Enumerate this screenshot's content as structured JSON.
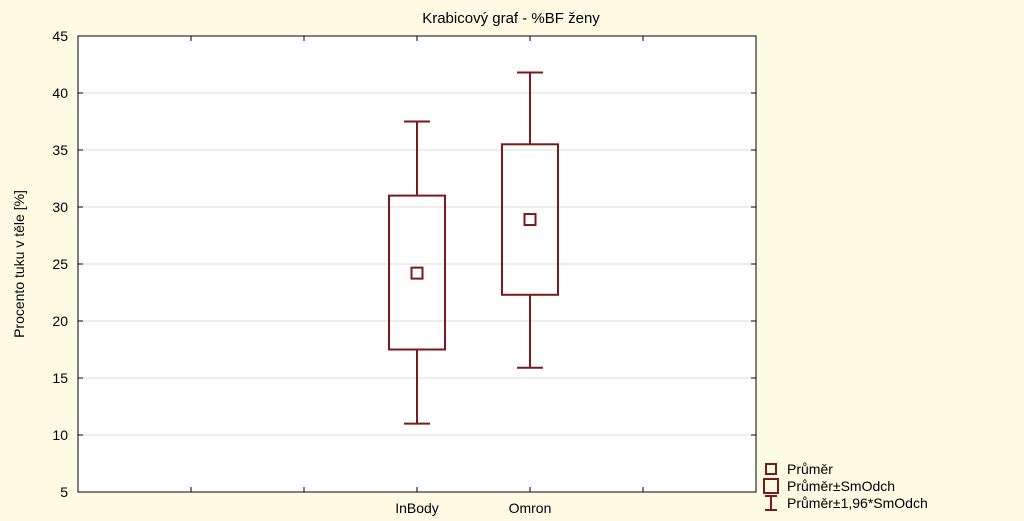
{
  "colors": {
    "background": "#fdfbe3",
    "plot_bg": "#ffffff",
    "box": "#7a1a1a",
    "grid": "#dddddd",
    "axis": "#000000"
  },
  "chart_data": {
    "type": "box",
    "title": "Krabicový graf - %BF ženy",
    "xlabel": "",
    "ylabel": "Procento tuku v těle [%]",
    "ylim": [
      5,
      45
    ],
    "yticks": [
      5,
      10,
      15,
      20,
      25,
      30,
      35,
      40,
      45
    ],
    "grid": true,
    "legend_position": "bottom-right, outside plot",
    "categories": [
      "InBody",
      "Omron"
    ],
    "boxes": [
      {
        "category": "InBody",
        "mean": 24.2,
        "sd_low": 17.5,
        "sd_high": 31.0,
        "ci_low": 11.0,
        "ci_high": 37.5
      },
      {
        "category": "Omron",
        "mean": 28.9,
        "sd_low": 22.3,
        "sd_high": 35.5,
        "ci_low": 15.9,
        "ci_high": 41.8
      }
    ],
    "legend": [
      {
        "marker": "small-square",
        "label": "Průměr"
      },
      {
        "marker": "large-square",
        "label": "Průměr±SmOdch"
      },
      {
        "marker": "whisker",
        "label": "Průměr±1,96*SmOdch"
      }
    ]
  }
}
